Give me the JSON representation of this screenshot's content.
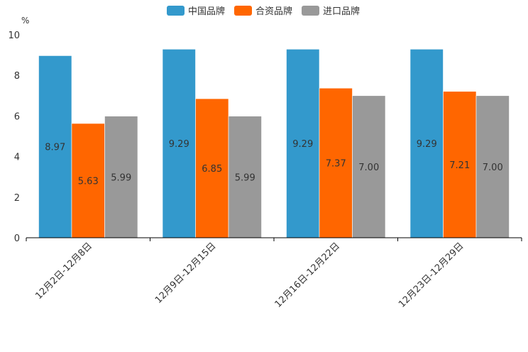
{
  "chart_data": {
    "type": "bar",
    "title": "",
    "ylabel": "%",
    "xlabel": "",
    "ylim": [
      0,
      10
    ],
    "yticks": [
      0,
      2,
      4,
      6,
      8,
      10
    ],
    "categories": [
      "12月2日-12月8日",
      "12月9日-12月15日",
      "12月16日-12月22日",
      "12月23日-12月29日"
    ],
    "series": [
      {
        "name": "中国品牌",
        "color": "#3399CC",
        "values": [
          8.97,
          9.29,
          9.29,
          9.29
        ],
        "labels": [
          "8.97",
          "9.29",
          "9.29",
          "9.29"
        ]
      },
      {
        "name": "合资品牌",
        "color": "#FF6600",
        "values": [
          5.63,
          6.85,
          7.37,
          7.21
        ],
        "labels": [
          "5.63",
          "6.85",
          "7.37",
          "7.21"
        ]
      },
      {
        "name": "进口品牌",
        "color": "#999999",
        "values": [
          5.99,
          5.99,
          7.0,
          7.0
        ],
        "labels": [
          "5.99",
          "5.99",
          "7.00",
          "7.00"
        ]
      }
    ],
    "legend_position": "top-center",
    "grid": false
  }
}
